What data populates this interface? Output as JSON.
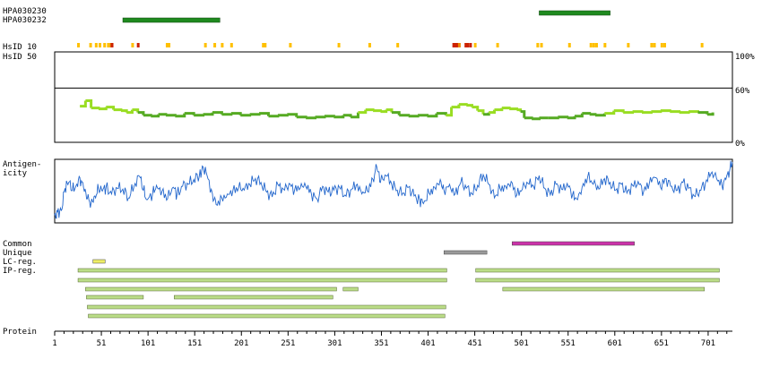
{
  "chart_data": {
    "type": "protein_feature_map",
    "sequence_length": 727,
    "x_ticks": [
      1,
      51,
      101,
      151,
      201,
      251,
      301,
      351,
      401,
      451,
      501,
      551,
      601,
      651,
      701
    ],
    "antibodies": [
      {
        "label": "HPA030230",
        "start": 520,
        "end": 596,
        "color": "#1f8a1f"
      },
      {
        "label": "HPA030232",
        "start": 74,
        "end": 178,
        "color": "#1f8a1f"
      }
    ],
    "hsid": {
      "label_10": "HsID 10",
      "label_50": "HsID 50",
      "marks": [
        {
          "pos": 26,
          "color": "#ffc000"
        },
        {
          "pos": 39,
          "color": "#ffc000"
        },
        {
          "pos": 45,
          "color": "#ffc000"
        },
        {
          "pos": 49,
          "color": "#ffc000"
        },
        {
          "pos": 54,
          "color": "#ffc000"
        },
        {
          "pos": 58,
          "color": "#ffc000"
        },
        {
          "pos": 61,
          "color": "#ee8800"
        },
        {
          "pos": 62,
          "color": "#cc2200"
        },
        {
          "pos": 84,
          "color": "#ffc000"
        },
        {
          "pos": 90,
          "color": "#cc2200"
        },
        {
          "pos": 121,
          "color": "#ffc000"
        },
        {
          "pos": 123,
          "color": "#ffc000"
        },
        {
          "pos": 162,
          "color": "#ffc000"
        },
        {
          "pos": 172,
          "color": "#ffc000"
        },
        {
          "pos": 180,
          "color": "#ffc000"
        },
        {
          "pos": 190,
          "color": "#ffc000"
        },
        {
          "pos": 224,
          "color": "#ffc000"
        },
        {
          "pos": 226,
          "color": "#ffc000"
        },
        {
          "pos": 253,
          "color": "#ffc000"
        },
        {
          "pos": 305,
          "color": "#ffc000"
        },
        {
          "pos": 338,
          "color": "#ffc000"
        },
        {
          "pos": 368,
          "color": "#ffc000"
        },
        {
          "pos": 428,
          "color": "#cc2200"
        },
        {
          "pos": 430,
          "color": "#cc2200"
        },
        {
          "pos": 432,
          "color": "#cc2200"
        },
        {
          "pos": 434,
          "color": "#ee8800"
        },
        {
          "pos": 441,
          "color": "#cc2200"
        },
        {
          "pos": 443,
          "color": "#cc2200"
        },
        {
          "pos": 446,
          "color": "#cc2200"
        },
        {
          "pos": 451,
          "color": "#ffc000"
        },
        {
          "pos": 475,
          "color": "#ffc000"
        },
        {
          "pos": 518,
          "color": "#ffc000"
        },
        {
          "pos": 522,
          "color": "#ffc000"
        },
        {
          "pos": 552,
          "color": "#ffc000"
        },
        {
          "pos": 575,
          "color": "#ffc000"
        },
        {
          "pos": 578,
          "color": "#ffc000"
        },
        {
          "pos": 581,
          "color": "#ffc000"
        },
        {
          "pos": 590,
          "color": "#ffc000"
        },
        {
          "pos": 615,
          "color": "#ffc000"
        },
        {
          "pos": 640,
          "color": "#ffc000"
        },
        {
          "pos": 643,
          "color": "#ffc000"
        },
        {
          "pos": 651,
          "color": "#ffc000"
        },
        {
          "pos": 654,
          "color": "#ffc000"
        },
        {
          "pos": 694,
          "color": "#ffc000"
        }
      ]
    },
    "identity": {
      "y_ticks": [
        "100%",
        "60%",
        "0%"
      ],
      "threshold": 60,
      "ylim": [
        0,
        100
      ],
      "line_color_high": "#99dd22",
      "line_color_low": "#55aa22",
      "points": [
        [
          28,
          40
        ],
        [
          34,
          46
        ],
        [
          40,
          38
        ],
        [
          48,
          37
        ],
        [
          56,
          39
        ],
        [
          64,
          36
        ],
        [
          72,
          35
        ],
        [
          78,
          33
        ],
        [
          84,
          36
        ],
        [
          90,
          33
        ],
        [
          96,
          30
        ],
        [
          104,
          29
        ],
        [
          112,
          31
        ],
        [
          120,
          30
        ],
        [
          130,
          29
        ],
        [
          140,
          32
        ],
        [
          150,
          30
        ],
        [
          160,
          31
        ],
        [
          170,
          33
        ],
        [
          180,
          31
        ],
        [
          190,
          32
        ],
        [
          200,
          30
        ],
        [
          210,
          31
        ],
        [
          220,
          32
        ],
        [
          230,
          29
        ],
        [
          240,
          30
        ],
        [
          250,
          31
        ],
        [
          260,
          28
        ],
        [
          270,
          27
        ],
        [
          280,
          28
        ],
        [
          290,
          29
        ],
        [
          300,
          28
        ],
        [
          310,
          30
        ],
        [
          318,
          28
        ],
        [
          326,
          33
        ],
        [
          334,
          36
        ],
        [
          342,
          35
        ],
        [
          350,
          34
        ],
        [
          356,
          36
        ],
        [
          362,
          33
        ],
        [
          370,
          30
        ],
        [
          380,
          29
        ],
        [
          390,
          30
        ],
        [
          400,
          29
        ],
        [
          410,
          32
        ],
        [
          420,
          30
        ],
        [
          426,
          39
        ],
        [
          434,
          42
        ],
        [
          442,
          41
        ],
        [
          448,
          39
        ],
        [
          454,
          35
        ],
        [
          460,
          31
        ],
        [
          466,
          33
        ],
        [
          472,
          36
        ],
        [
          480,
          38
        ],
        [
          488,
          37
        ],
        [
          496,
          36
        ],
        [
          500,
          34
        ],
        [
          504,
          27
        ],
        [
          512,
          26
        ],
        [
          520,
          27
        ],
        [
          530,
          27
        ],
        [
          540,
          28
        ],
        [
          550,
          27
        ],
        [
          558,
          29
        ],
        [
          566,
          32
        ],
        [
          574,
          31
        ],
        [
          580,
          30
        ],
        [
          590,
          32
        ],
        [
          600,
          35
        ],
        [
          610,
          33
        ],
        [
          620,
          34
        ],
        [
          630,
          33
        ],
        [
          640,
          34
        ],
        [
          650,
          35
        ],
        [
          660,
          34
        ],
        [
          670,
          33
        ],
        [
          680,
          34
        ],
        [
          690,
          33
        ],
        [
          700,
          31
        ],
        [
          706,
          33
        ]
      ]
    },
    "antigenicity": {
      "label": "Antigen-\nicity",
      "line_color": "#2266cc",
      "points": [
        [
          1,
          -2.4
        ],
        [
          4,
          -2.1
        ],
        [
          8,
          -1.9
        ],
        [
          12,
          0.4
        ],
        [
          16,
          1.0
        ],
        [
          20,
          0.2
        ],
        [
          24,
          0.7
        ],
        [
          28,
          1.5
        ],
        [
          32,
          0.4
        ],
        [
          36,
          -0.7
        ],
        [
          40,
          -1.1
        ],
        [
          44,
          -0.4
        ],
        [
          48,
          0.3
        ],
        [
          52,
          0.1
        ],
        [
          56,
          0.5
        ],
        [
          62,
          -0.2
        ],
        [
          68,
          0.4
        ],
        [
          74,
          0.3
        ],
        [
          80,
          -0.6
        ],
        [
          86,
          0.6
        ],
        [
          92,
          1.6
        ],
        [
          96,
          0.2
        ],
        [
          100,
          -0.8
        ],
        [
          106,
          -0.1
        ],
        [
          110,
          0.7
        ],
        [
          116,
          0.1
        ],
        [
          122,
          -0.7
        ],
        [
          128,
          0.5
        ],
        [
          132,
          -0.3
        ],
        [
          138,
          0.6
        ],
        [
          144,
          0.8
        ],
        [
          150,
          1.3
        ],
        [
          156,
          1.7
        ],
        [
          160,
          2.6
        ],
        [
          164,
          1.8
        ],
        [
          170,
          -0.2
        ],
        [
          174,
          -1.3
        ],
        [
          180,
          -0.6
        ],
        [
          186,
          -0.2
        ],
        [
          192,
          0.2
        ],
        [
          198,
          0.4
        ],
        [
          204,
          0.2
        ],
        [
          210,
          0.8
        ],
        [
          216,
          1.4
        ],
        [
          222,
          1.0
        ],
        [
          228,
          0.0
        ],
        [
          234,
          -0.5
        ],
        [
          240,
          0.8
        ],
        [
          246,
          0.3
        ],
        [
          252,
          0.9
        ],
        [
          258,
          0.2
        ],
        [
          264,
          0.4
        ],
        [
          270,
          0.6
        ],
        [
          276,
          -0.2
        ],
        [
          282,
          -0.7
        ],
        [
          288,
          0.6
        ],
        [
          294,
          0.0
        ],
        [
          300,
          0.2
        ],
        [
          306,
          0.5
        ],
        [
          312,
          -0.3
        ],
        [
          318,
          0.2
        ],
        [
          324,
          0.7
        ],
        [
          330,
          -0.2
        ],
        [
          336,
          0.1
        ],
        [
          342,
          1.3
        ],
        [
          346,
          2.6
        ],
        [
          350,
          1.0
        ],
        [
          356,
          1.7
        ],
        [
          362,
          0.8
        ],
        [
          368,
          0.2
        ],
        [
          374,
          -0.1
        ],
        [
          380,
          0.5
        ],
        [
          386,
          -0.4
        ],
        [
          392,
          -0.8
        ],
        [
          396,
          -1.2
        ],
        [
          402,
          -0.1
        ],
        [
          408,
          0.5
        ],
        [
          414,
          1.3
        ],
        [
          418,
          0.2
        ],
        [
          424,
          0.8
        ],
        [
          430,
          -0.2
        ],
        [
          436,
          1.0
        ],
        [
          442,
          0.4
        ],
        [
          448,
          -0.2
        ],
        [
          454,
          0.7
        ],
        [
          460,
          1.8
        ],
        [
          466,
          0.8
        ],
        [
          472,
          -0.6
        ],
        [
          478,
          0.4
        ],
        [
          484,
          0.6
        ],
        [
          490,
          1.1
        ],
        [
          496,
          -0.3
        ],
        [
          502,
          0.3
        ],
        [
          508,
          0.9
        ],
        [
          514,
          0.6
        ],
        [
          520,
          1.7
        ],
        [
          526,
          0.4
        ],
        [
          532,
          -0.3
        ],
        [
          538,
          0.8
        ],
        [
          544,
          0.3
        ],
        [
          550,
          0.9
        ],
        [
          556,
          -0.2
        ],
        [
          560,
          -0.7
        ],
        [
          566,
          0.5
        ],
        [
          572,
          1.6
        ],
        [
          578,
          0.8
        ],
        [
          584,
          0.3
        ],
        [
          590,
          1.4
        ],
        [
          596,
          1.0
        ],
        [
          602,
          0.2
        ],
        [
          608,
          0.8
        ],
        [
          614,
          -0.1
        ],
        [
          620,
          0.7
        ],
        [
          626,
          1.1
        ],
        [
          632,
          0.1
        ],
        [
          638,
          0.9
        ],
        [
          644,
          1.5
        ],
        [
          650,
          0.5
        ],
        [
          656,
          1.4
        ],
        [
          662,
          0.6
        ],
        [
          668,
          0.2
        ],
        [
          674,
          1.0
        ],
        [
          680,
          0.4
        ],
        [
          686,
          -0.4
        ],
        [
          692,
          0.2
        ],
        [
          698,
          0.9
        ],
        [
          704,
          1.9
        ],
        [
          710,
          1.4
        ],
        [
          716,
          0.6
        ],
        [
          720,
          1.3
        ],
        [
          724,
          2.2
        ],
        [
          727,
          3.1
        ]
      ]
    },
    "tracks": [
      {
        "label": "Common",
        "segments": [
          [
            491,
            622
          ]
        ],
        "color": "#cc33aa"
      },
      {
        "label": "Unique",
        "segments": [
          [
            418,
            464
          ]
        ],
        "color": "#9a9a9a"
      },
      {
        "label": "LC-reg.",
        "segments": [
          [
            42,
            55
          ]
        ],
        "color": "#eeee66"
      },
      {
        "label": "IP-reg.",
        "segments": [
          [
            26,
            421
          ],
          [
            452,
            713
          ],
          [
            26,
            421
          ],
          [
            452,
            713
          ],
          [
            34,
            303
          ],
          [
            310,
            326
          ],
          [
            481,
            697
          ],
          [
            35,
            96
          ],
          [
            129,
            299
          ],
          [
            36,
            420
          ],
          [
            37,
            419
          ]
        ],
        "color": "#bbdd88"
      }
    ],
    "protein": {
      "label": "Protein",
      "start": 1,
      "end": 727
    }
  }
}
